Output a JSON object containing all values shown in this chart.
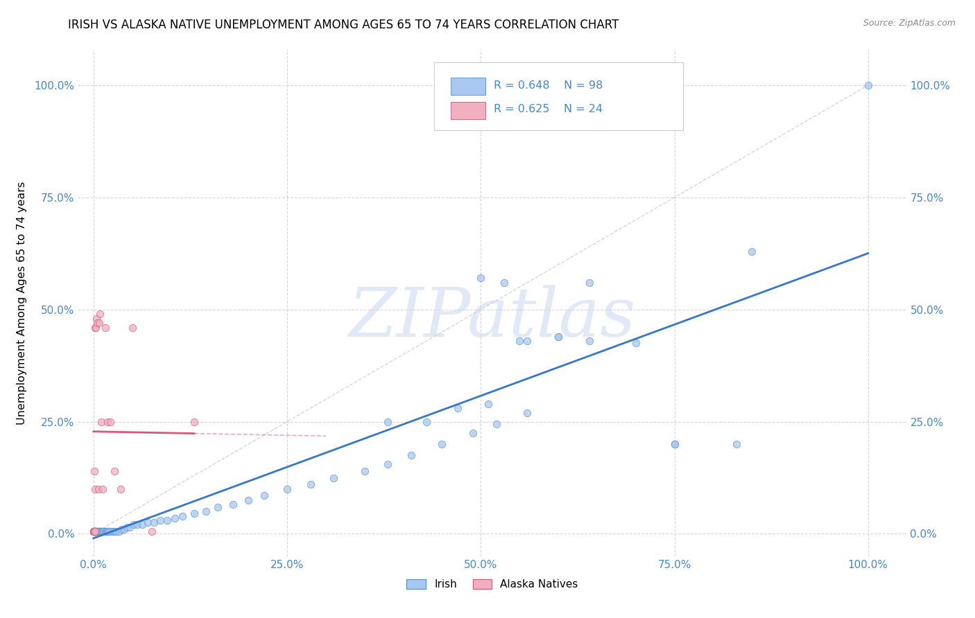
{
  "title": "IRISH VS ALASKA NATIVE UNEMPLOYMENT AMONG AGES 65 TO 74 YEARS CORRELATION CHART",
  "source": "Source: ZipAtlas.com",
  "ylabel": "Unemployment Among Ages 65 to 74 years",
  "tick_vals": [
    0.0,
    0.25,
    0.5,
    0.75,
    1.0
  ],
  "tick_labels": [
    "0.0%",
    "25.0%",
    "50.0%",
    "75.0%",
    "100.0%"
  ],
  "irish_color": "#a8c8f0",
  "irish_edge_color": "#6699cc",
  "alaska_color": "#f0b0c0",
  "alaska_edge_color": "#cc6688",
  "trendline_irish_color": "#3377cc",
  "trendline_alaska_color": "#dd5577",
  "trendline_diag_color": "#cccccc",
  "legend_irish_label": "Irish",
  "legend_alaska_label": "Alaska Natives",
  "irish_R_text": "R = 0.648",
  "irish_N_text": "N = 98",
  "alaska_R_text": "R = 0.625",
  "alaska_N_text": "N = 24",
  "watermark_text": "ZIPatlas",
  "irish_x": [
    0.0,
    0.0,
    0.0,
    0.001,
    0.001,
    0.001,
    0.001,
    0.001,
    0.002,
    0.002,
    0.002,
    0.002,
    0.003,
    0.003,
    0.003,
    0.003,
    0.004,
    0.004,
    0.004,
    0.005,
    0.005,
    0.005,
    0.005,
    0.006,
    0.006,
    0.007,
    0.007,
    0.008,
    0.008,
    0.008,
    0.009,
    0.009,
    0.01,
    0.01,
    0.011,
    0.011,
    0.012,
    0.013,
    0.014,
    0.015,
    0.016,
    0.017,
    0.018,
    0.019,
    0.02,
    0.022,
    0.024,
    0.026,
    0.028,
    0.03,
    0.033,
    0.036,
    0.04,
    0.043,
    0.047,
    0.052,
    0.057,
    0.063,
    0.07,
    0.078,
    0.086,
    0.095,
    0.105,
    0.115,
    0.13,
    0.145,
    0.16,
    0.18,
    0.2,
    0.22,
    0.25,
    0.28,
    0.31,
    0.35,
    0.38,
    0.41,
    0.45,
    0.49,
    0.52,
    0.56,
    0.38,
    0.43,
    0.47,
    0.51,
    0.55,
    0.6,
    0.64,
    0.7,
    0.75,
    0.83,
    0.5,
    0.53,
    0.56,
    0.6,
    0.64,
    0.75,
    0.85,
    1.0
  ],
  "irish_y": [
    0.005,
    0.005,
    0.005,
    0.005,
    0.005,
    0.005,
    0.005,
    0.005,
    0.005,
    0.005,
    0.005,
    0.005,
    0.005,
    0.005,
    0.005,
    0.005,
    0.005,
    0.005,
    0.005,
    0.005,
    0.005,
    0.005,
    0.005,
    0.005,
    0.005,
    0.005,
    0.005,
    0.005,
    0.005,
    0.005,
    0.005,
    0.005,
    0.005,
    0.005,
    0.005,
    0.005,
    0.005,
    0.005,
    0.005,
    0.005,
    0.005,
    0.005,
    0.005,
    0.005,
    0.005,
    0.005,
    0.005,
    0.005,
    0.005,
    0.005,
    0.005,
    0.01,
    0.01,
    0.015,
    0.015,
    0.02,
    0.02,
    0.02,
    0.025,
    0.025,
    0.03,
    0.03,
    0.035,
    0.04,
    0.045,
    0.05,
    0.06,
    0.065,
    0.075,
    0.085,
    0.1,
    0.11,
    0.125,
    0.14,
    0.155,
    0.175,
    0.2,
    0.225,
    0.245,
    0.27,
    0.25,
    0.25,
    0.28,
    0.29,
    0.43,
    0.44,
    0.43,
    0.425,
    0.2,
    0.2,
    0.57,
    0.56,
    0.43,
    0.44,
    0.56,
    0.2,
    0.63,
    1.0
  ],
  "alaska_x": [
    0.0,
    0.0,
    0.001,
    0.001,
    0.001,
    0.002,
    0.002,
    0.002,
    0.003,
    0.004,
    0.005,
    0.006,
    0.007,
    0.008,
    0.01,
    0.012,
    0.015,
    0.018,
    0.022,
    0.027,
    0.035,
    0.05,
    0.075,
    0.13
  ],
  "alaska_y": [
    0.005,
    0.005,
    0.005,
    0.005,
    0.14,
    0.005,
    0.1,
    0.46,
    0.46,
    0.48,
    0.47,
    0.1,
    0.47,
    0.49,
    0.25,
    0.1,
    0.46,
    0.25,
    0.25,
    0.14,
    0.1,
    0.46,
    0.005,
    0.25
  ],
  "xlim": [
    -0.02,
    1.05
  ],
  "ylim": [
    -0.05,
    1.08
  ]
}
